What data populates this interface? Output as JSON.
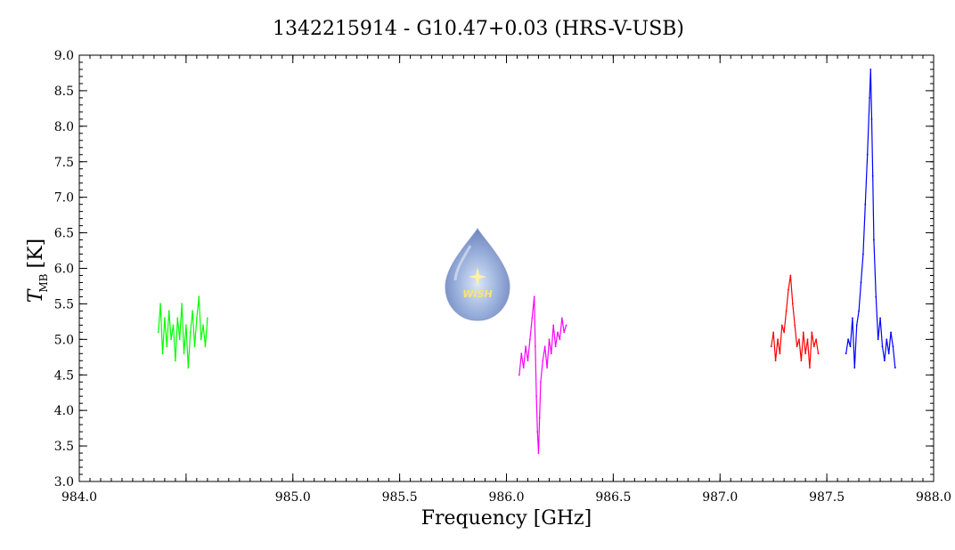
{
  "chart_data": {
    "type": "line",
    "title": "1342215914 - G10.47+0.03 (HRS-V-USB)",
    "xlabel": "Frequency [GHz]",
    "ylabel_main": "T",
    "ylabel_sub": "MB",
    "ylabel_unit": "[K]",
    "xlim": [
      984.0,
      988.0
    ],
    "ylim": [
      3.0,
      9.0
    ],
    "x_ticks": [
      "984.0",
      "985.0",
      "985.5",
      "986.0",
      "986.5",
      "987.0",
      "987.5",
      "988.0"
    ],
    "x_tick_values": [
      984.0,
      985.0,
      985.5,
      986.0,
      986.5,
      987.0,
      987.5,
      988.0
    ],
    "y_ticks": [
      "3.0",
      "3.5",
      "4.0",
      "4.5",
      "5.0",
      "5.5",
      "6.0",
      "6.5",
      "7.0",
      "7.5",
      "8.0",
      "8.5",
      "9.0"
    ],
    "y_tick_values": [
      3.0,
      3.5,
      4.0,
      4.5,
      5.0,
      5.5,
      6.0,
      6.5,
      7.0,
      7.5,
      8.0,
      8.5,
      9.0
    ],
    "grid": false,
    "series": [
      {
        "color": "#00ff00",
        "x": [
          984.37,
          984.38,
          984.39,
          984.4,
          984.41,
          984.42,
          984.43,
          984.44,
          984.45,
          984.46,
          984.47,
          984.48,
          984.49,
          984.5,
          984.51,
          984.52,
          984.53,
          984.54,
          984.55,
          984.56,
          984.57,
          984.58,
          984.59,
          984.6
        ],
        "y": [
          5.1,
          5.5,
          4.8,
          5.3,
          4.9,
          5.4,
          5.0,
          5.2,
          4.7,
          5.3,
          5.0,
          5.5,
          4.8,
          5.2,
          4.6,
          5.1,
          5.4,
          4.9,
          5.3,
          5.6,
          5.0,
          5.2,
          4.9,
          5.3
        ]
      },
      {
        "color": "#ff00ff",
        "x": [
          986.06,
          986.07,
          986.08,
          986.09,
          986.1,
          986.11,
          986.12,
          986.13,
          986.135,
          986.14,
          986.145,
          986.15,
          986.155,
          986.16,
          986.17,
          986.18,
          986.19,
          986.2,
          986.21,
          986.22,
          986.23,
          986.24,
          986.25,
          986.26,
          986.27,
          986.28
        ],
        "y": [
          4.5,
          4.8,
          4.6,
          4.9,
          4.7,
          5.0,
          5.3,
          5.6,
          4.9,
          4.2,
          3.7,
          3.4,
          3.9,
          4.4,
          4.7,
          4.9,
          4.6,
          5.0,
          4.8,
          5.2,
          4.9,
          5.1,
          5.0,
          5.3,
          5.1,
          5.2
        ]
      },
      {
        "color": "#ff0000",
        "x": [
          987.24,
          987.25,
          987.26,
          987.27,
          987.28,
          987.29,
          987.3,
          987.31,
          987.32,
          987.33,
          987.34,
          987.35,
          987.36,
          987.37,
          987.38,
          987.39,
          987.4,
          987.41,
          987.42,
          987.43,
          987.44,
          987.45,
          987.46
        ],
        "y": [
          4.9,
          5.1,
          4.7,
          5.0,
          4.8,
          5.2,
          5.1,
          5.4,
          5.7,
          5.9,
          5.5,
          5.2,
          4.9,
          5.0,
          4.7,
          5.1,
          4.8,
          5.0,
          4.6,
          5.1,
          4.9,
          5.0,
          4.8
        ]
      },
      {
        "color": "#0000ff",
        "x": [
          987.59,
          987.6,
          987.61,
          987.62,
          987.63,
          987.64,
          987.65,
          987.66,
          987.67,
          987.68,
          987.69,
          987.7,
          987.705,
          987.71,
          987.715,
          987.72,
          987.73,
          987.74,
          987.75,
          987.76,
          987.77,
          987.78,
          987.79,
          987.8,
          987.81,
          987.82
        ],
        "y": [
          4.8,
          5.0,
          4.9,
          5.3,
          4.6,
          5.2,
          5.4,
          5.8,
          6.2,
          6.9,
          7.6,
          8.4,
          8.8,
          8.1,
          7.3,
          6.4,
          5.6,
          5.0,
          5.3,
          4.9,
          4.7,
          5.0,
          4.8,
          5.1,
          4.9,
          4.6
        ]
      }
    ]
  },
  "logo": {
    "text": "WISH"
  }
}
